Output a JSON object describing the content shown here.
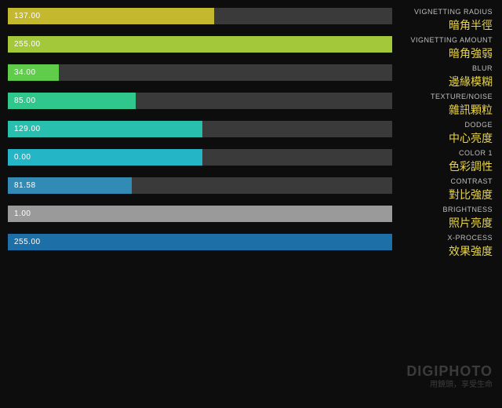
{
  "max": 255,
  "track_w": 490,
  "track_bg": "#3a3a3a",
  "bg": "#0d0d0d",
  "value_color": "#ffffff",
  "en_color": "#bfbfbf",
  "cn_color": "#e8d44a",
  "sliders": [
    {
      "value": "137.00",
      "num": 137,
      "fill": "#c4b82f",
      "label_en": "VIGNETTING RADIUS",
      "label_cn": "暗角半徑"
    },
    {
      "value": "255.00",
      "num": 255,
      "fill": "#a3c93a",
      "label_en": "VIGNETTING AMOUNT",
      "label_cn": "暗角強弱"
    },
    {
      "value": "34.00",
      "num": 34,
      "fill": "#5fcc4a",
      "label_en": "BLUR",
      "label_cn": "邊緣模糊"
    },
    {
      "value": "85.00",
      "num": 85,
      "fill": "#2fc78b",
      "label_en": "TEXTURE/NOISE",
      "label_cn": "雜訊顆粒"
    },
    {
      "value": "129.00",
      "num": 129,
      "fill": "#29bfae",
      "label_en": "DODGE",
      "label_cn": "中心亮度"
    },
    {
      "value": "0.00",
      "num": 129,
      "fill": "#24b5c6",
      "label_en": "COLOR 1",
      "label_cn": "色彩調性"
    },
    {
      "value": "81.58",
      "num": 82,
      "fill": "#318bb5",
      "label_en": "CONTRAST",
      "label_cn": "對比強度"
    },
    {
      "value": "1.00",
      "num": 255,
      "fill": "#9a9a9a",
      "label_en": "BRIGHTNESS",
      "label_cn": "照片亮度"
    },
    {
      "value": "255.00",
      "num": 255,
      "fill": "#1d6fa8",
      "label_en": "X-PROCESS",
      "label_cn": "效果強度"
    }
  ],
  "watermark": "DIGIPHOTO",
  "watermark_sub": "用鏡頭，享受生命"
}
